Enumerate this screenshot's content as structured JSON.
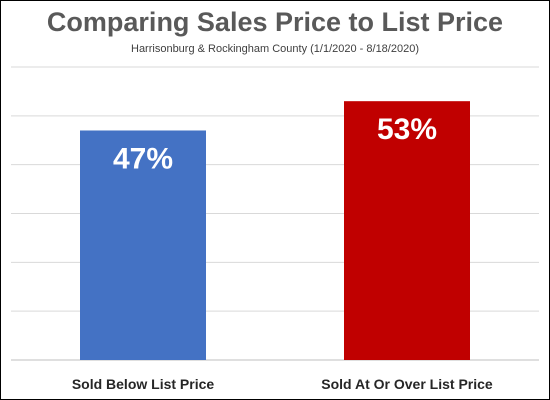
{
  "chart_data": {
    "type": "bar",
    "title": "Comparing Sales Price to List Price",
    "subtitle": "Harrisonburg & Rockingham County (1/1/2020 - 8/18/2020)",
    "categories": [
      "Sold Below List Price",
      "Sold At Or Over List Price"
    ],
    "values": [
      47,
      53
    ],
    "data_labels": [
      "47%",
      "53%"
    ],
    "colors": [
      "#4472C4",
      "#C00000"
    ],
    "ylim": [
      0,
      60
    ],
    "grid": true,
    "y_axis_labels_visible": false,
    "legend": "none"
  }
}
